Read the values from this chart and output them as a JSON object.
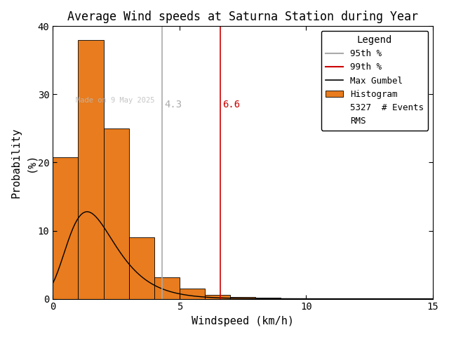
{
  "title": "Average Wind speeds at Saturna Station during Year",
  "xlabel": "Windspeed (km/h)",
  "ylabel": "Probability\n(%)",
  "xlim": [
    0,
    15
  ],
  "ylim": [
    0,
    40
  ],
  "xticks": [
    0,
    5,
    10,
    15
  ],
  "yticks": [
    0,
    10,
    20,
    30,
    40
  ],
  "bar_edges": [
    0,
    1,
    2,
    3,
    4,
    5,
    6,
    7,
    8,
    9,
    10,
    11,
    12,
    13,
    14,
    15
  ],
  "bar_heights": [
    20.8,
    38.0,
    25.0,
    9.0,
    3.2,
    1.5,
    0.6,
    0.3,
    0.15,
    0.1,
    0.05,
    0.03,
    0.01,
    0.005,
    0.002
  ],
  "bar_color": "#e87c1e",
  "bar_edgecolor": "#000000",
  "vline_95_x": 4.3,
  "vline_99_x": 6.6,
  "vline_95_color": "#aaaaaa",
  "vline_99_color": "#cc0000",
  "gumbel_mu": 1.35,
  "gumbel_beta": 0.95,
  "gumbel_scale": 33.0,
  "n_events": 5327,
  "watermark": "Made on 9 May 2025",
  "watermark_color": "#bbbbbb",
  "background_color": "#ffffff",
  "legend_title": "Legend",
  "legend_95_label": "95th %",
  "legend_99_label": "99th %",
  "legend_gumbel_label": "Max Gumbel",
  "legend_hist_label": "Histogram",
  "legend_events_label": "5327  # Events",
  "legend_rms_label": "RMS",
  "title_fontsize": 12,
  "axis_fontsize": 11,
  "tick_fontsize": 10,
  "legend_fontsize": 9
}
